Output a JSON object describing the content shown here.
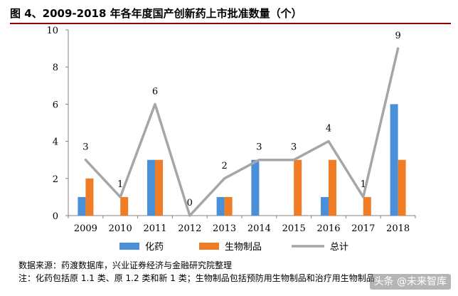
{
  "title": "图 4、2009-2018 年各年度国产创新药上市批准数量（个）",
  "source": "数据来源：药渡数据库，兴业证券经济与金融研究院整理",
  "note": "注：化药包括原 1.1 类、原 1.2 类和新 1 类；生物制品包括预防用生物制品和治疗用生物制品",
  "watermark": "头条 @未来智库",
  "colors": {
    "chem": "#4a90d9",
    "bio": "#f07d26",
    "total": "#a6a6a6",
    "title_rule": "#8b0000"
  },
  "chart_data": {
    "type": "bar",
    "categories": [
      "2009",
      "2010",
      "2011",
      "2012",
      "2013",
      "2014",
      "2015",
      "2016",
      "2017",
      "2018"
    ],
    "series": [
      {
        "name": "化药",
        "type": "bar",
        "values": [
          1,
          0,
          3,
          0,
          1,
          3,
          0,
          1,
          0,
          6
        ]
      },
      {
        "name": "生物制品",
        "type": "bar",
        "values": [
          2,
          1,
          3,
          0,
          1,
          0,
          3,
          3,
          1,
          3
        ]
      },
      {
        "name": "总计",
        "type": "line",
        "values": [
          3,
          1,
          6,
          0,
          2,
          3,
          3,
          4,
          1,
          9
        ]
      }
    ],
    "ylim": [
      0,
      10
    ],
    "yticks": [
      0,
      2,
      4,
      6,
      8,
      10
    ],
    "data_labels": [
      "3",
      "1",
      "6",
      "0",
      "2",
      "3",
      "3",
      "4",
      "1",
      "9"
    ],
    "grid": false,
    "legend_position": "bottom"
  }
}
